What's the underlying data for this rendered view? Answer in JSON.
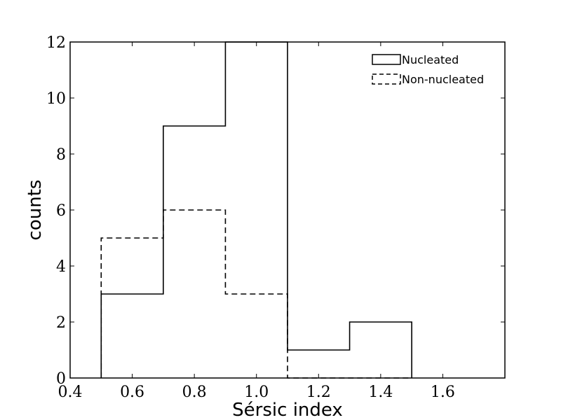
{
  "chart_data": {
    "type": "histogram",
    "xlabel": "Sérsic index",
    "ylabel": "counts",
    "xlim": [
      0.4,
      1.8
    ],
    "ylim": [
      0,
      12
    ],
    "x_ticks": [
      0.4,
      0.6,
      0.8,
      1.0,
      1.2,
      1.4,
      1.6
    ],
    "x_tick_labels": [
      "0.4",
      "0.6",
      "0.8",
      "1.0",
      "1.2",
      "1.4",
      "1.6"
    ],
    "y_ticks": [
      0,
      2,
      4,
      6,
      8,
      10,
      12
    ],
    "y_tick_labels": [
      "0",
      "2",
      "4",
      "6",
      "8",
      "10",
      "12"
    ],
    "grid": false,
    "legend_position": "top-right",
    "bin_edges": [
      0.5,
      0.7,
      0.9,
      1.1,
      1.3,
      1.5
    ],
    "series": [
      {
        "name": "Nucleated",
        "style": "solid",
        "color": "#000000",
        "values": [
          3,
          9,
          12,
          1,
          2
        ]
      },
      {
        "name": "Non-nucleated",
        "style": "dashed",
        "color": "#000000",
        "values": [
          5,
          6,
          3,
          0,
          0
        ]
      }
    ]
  }
}
